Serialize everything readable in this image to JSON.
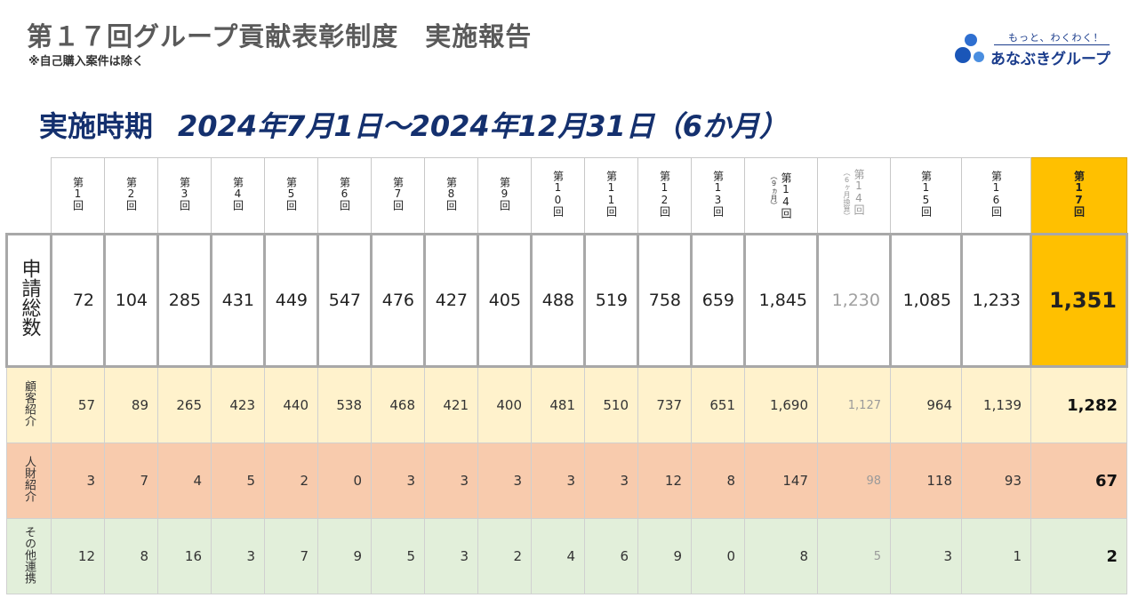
{
  "title": "第１７回グループ貢献表彰制度　実施報告",
  "note": "※自己購入案件は除く",
  "logo": {
    "tagline": "もっと、わくわく！",
    "name": "あなぶきグループ"
  },
  "period": {
    "label": "実施時期",
    "dates": "2024年7月1日～2024年12月31日（6か月）"
  },
  "columns": [
    {
      "label": "第1回",
      "sub": ""
    },
    {
      "label": "第2回",
      "sub": ""
    },
    {
      "label": "第3回",
      "sub": ""
    },
    {
      "label": "第4回",
      "sub": ""
    },
    {
      "label": "第5回",
      "sub": ""
    },
    {
      "label": "第6回",
      "sub": ""
    },
    {
      "label": "第7回",
      "sub": ""
    },
    {
      "label": "第8回",
      "sub": ""
    },
    {
      "label": "第9回",
      "sub": ""
    },
    {
      "label": "第10回",
      "sub": ""
    },
    {
      "label": "第11回",
      "sub": ""
    },
    {
      "label": "第12回",
      "sub": ""
    },
    {
      "label": "第13回",
      "sub": ""
    },
    {
      "label": "第14回",
      "sub": "（9ヵ月）"
    },
    {
      "label": "第14回",
      "sub": "（6ヶ月換算）"
    },
    {
      "label": "第15回",
      "sub": ""
    },
    {
      "label": "第16回",
      "sub": ""
    },
    {
      "label": "第17回",
      "sub": ""
    }
  ],
  "rows": {
    "total": {
      "label": "申請総数",
      "values": [
        "72",
        "104",
        "285",
        "431",
        "449",
        "547",
        "476",
        "427",
        "405",
        "488",
        "519",
        "758",
        "659",
        "1,845",
        "1,230",
        "1,085",
        "1,233",
        "1,351"
      ]
    },
    "customer": {
      "label": "顧客紹介",
      "values": [
        "57",
        "89",
        "265",
        "423",
        "440",
        "538",
        "468",
        "421",
        "400",
        "481",
        "510",
        "737",
        "651",
        "1,690",
        "1,127",
        "964",
        "1,139",
        "1,282"
      ]
    },
    "hr": {
      "label": "人財紹介",
      "values": [
        "3",
        "7",
        "4",
        "5",
        "2",
        "0",
        "3",
        "3",
        "3",
        "3",
        "3",
        "12",
        "8",
        "147",
        "98",
        "118",
        "93",
        "67"
      ]
    },
    "other": {
      "label": "その他連携",
      "values": [
        "12",
        "8",
        "16",
        "3",
        "7",
        "9",
        "5",
        "3",
        "2",
        "4",
        "6",
        "9",
        "0",
        "8",
        "5",
        "3",
        "1",
        "2"
      ]
    }
  },
  "colors": {
    "highlight": "#ffc000",
    "customer_row": "#fff2cc",
    "hr_row": "#f8cbad",
    "other_row": "#e2efda",
    "period_text": "#14306e"
  }
}
